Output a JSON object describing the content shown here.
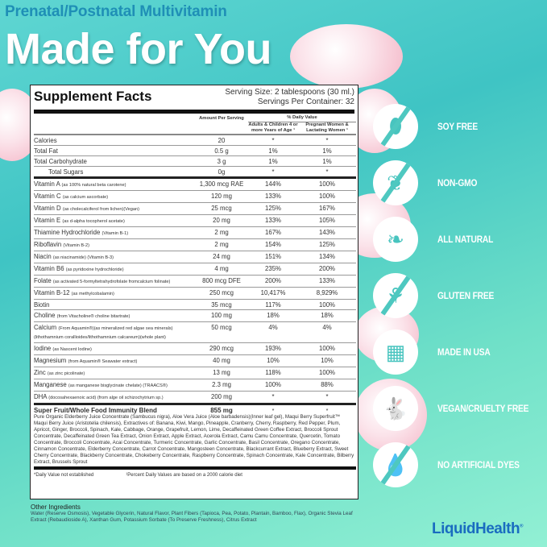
{
  "header": {
    "subtitle": "Prenatal/Postnatal Multivitamin",
    "title": "Made for You"
  },
  "panel": {
    "title": "Supplement Facts",
    "serving_size": "Serving Size: 2 tablespoons (30 ml.)",
    "servings_per_container": "Servings Per Container: 32",
    "columns": {
      "amount": "Amount Per Serving",
      "daily_value": "% Daily Value",
      "adults": "Adults & Children 4 or more Years of Age ¹",
      "pregnant": "Pregnant Women & Lactating Women ¹"
    },
    "macros": [
      {
        "name": "Calories",
        "amount": "20",
        "adults": "*",
        "pregnant": "*"
      },
      {
        "name": "Total Fat",
        "amount": "0.5 g",
        "adults": "1%",
        "pregnant": "1%"
      },
      {
        "name": "Total Carbohydrate",
        "amount": "3 g",
        "adults": "1%",
        "pregnant": "1%"
      },
      {
        "name": "Total Sugars",
        "amount": "0g",
        "adults": "*",
        "pregnant": "*"
      }
    ],
    "nutrients": [
      {
        "name": "Vitamin A",
        "note": "(as 100% natural beta carotene)",
        "amount": "1,300 mcg RAE",
        "adults": "144%",
        "pregnant": "100%"
      },
      {
        "name": "Vitamin C",
        "note": "(as calcium ascorbate)",
        "amount": "120 mg",
        "adults": "133%",
        "pregnant": "100%"
      },
      {
        "name": "Vitamin D",
        "note": "(as cholecalciferol from lichen)(Vegan)",
        "amount": "25 mcg",
        "adults": "125%",
        "pregnant": "167%"
      },
      {
        "name": "Vitamin E",
        "note": "(as d-alpha tocopherol acetate)",
        "amount": "20 mg",
        "adults": "133%",
        "pregnant": "105%"
      },
      {
        "name": "Thiamine Hydrochloride",
        "note": "(Vitamin B-1)",
        "amount": "2 mg",
        "adults": "167%",
        "pregnant": "143%"
      },
      {
        "name": "Riboflavin",
        "note": "(Vitamin B-2)",
        "amount": "2 mg",
        "adults": "154%",
        "pregnant": "125%"
      },
      {
        "name": "Niacin",
        "note": "(as niacinamide) (Vitamin B-3)",
        "amount": "24 mg",
        "adults": "151%",
        "pregnant": "134%"
      },
      {
        "name": "Vitamin B6",
        "note": "(as pyridoxine hydrochloride)",
        "amount": "4 mg",
        "adults": "235%",
        "pregnant": "200%"
      },
      {
        "name": "Folate",
        "note": "(as activated 5-formyltetrahydrofolate fromcalcium folinate)",
        "amount": "800 mcg DFE",
        "adults": "200%",
        "pregnant": "133%"
      },
      {
        "name": "Vitamin B-12",
        "note": "(as methylcobalamin)",
        "amount": "250 mcg",
        "adults": "10,417%",
        "pregnant": "8,929%"
      },
      {
        "name": "Biotin",
        "note": "",
        "amount": "35 mcg",
        "adults": "117%",
        "pregnant": "100%"
      },
      {
        "name": "Choline",
        "note": "(from Vitacholine® choline bitartrate)",
        "amount": "100 mg",
        "adults": "18%",
        "pregnant": "18%"
      },
      {
        "name": "Calcium",
        "note": "(From Aquamin®)(as mineralized red algae sea minerals)(lithothamnium corallioides/lithothamnium calcareum)(whole plant)",
        "amount": "50 mcg",
        "adults": "4%",
        "pregnant": "4%"
      },
      {
        "name": "Iodine",
        "note": "(as Nascent Iodine)",
        "amount": "290 mcg",
        "adults": "193%",
        "pregnant": "100%"
      },
      {
        "name": "Magnesium",
        "note": "(from Aquamin® Seawater extract)",
        "amount": "40 mg",
        "adults": "10%",
        "pregnant": "10%"
      },
      {
        "name": "Zinc",
        "note": "(as zinc picolinate)",
        "amount": "13 mg",
        "adults": "118%",
        "pregnant": "100%"
      },
      {
        "name": "Manganese",
        "note": "(as manganese bisglycinate chelate) (TRAACS®)",
        "amount": "2.3 mg",
        "adults": "100%",
        "pregnant": "88%"
      },
      {
        "name": "DHA",
        "note": "(docosahexaenoic acid) (from alge oil schizochytrium sp.)",
        "amount": "200 mg",
        "adults": "*",
        "pregnant": "*"
      }
    ],
    "blend": {
      "name": "Super Fruit/Whole Food Immunity Blend",
      "amount": "855 mg",
      "adults": "*",
      "pregnant": "*",
      "ingredients": "Pure Organic Elderberry Juice Concentrate (Sambucus nigra), Aloe Vera Juice (Aloe barbadensis)(Inner leaf gel), Maqui Berry Superfruit™ Maqui Berry Juice (Aristotelia chilensis), Extractives of: Banana, Kiwi, Mango, Pineapple, Cranberry, Cherry, Raspberry, Red Pepper, Plum, Apricot, Ginger, Broccoli, Spinach, Kale, Cabbage, Orange, Grapefruit, Lemon, Lime, Decaffeinated Green Coffee Extract, Broccoli Sprout Concentrate, Decaffeinated Green Tea Extract, Onion Extract, Apple Extract, Acerola Extract, Camu Camu Concentrate, Quercetin, Tomato Concentrate, Broccoli Concentrate, Acai Concentrate, Turmeric Concentrate, Garlic Concentrate, Basil Concentrate, Oregano Concentrate, Cinnamon Concentrate, Elderberry Concentrate, Carrot Concentrate, Mangosteen Concentrate, Blackcurrant Extract, Blueberry Extract, Sweet Cherry Concentrate, Blackberry Concentrate, Chokeberry Concentrate, Raspberry Concentrate, Spinach Concentrate, Kale Concentrate, Bilberry Extract, Brussels Sprout"
    },
    "footnotes": [
      "*Daily Value not established",
      "¹Percent Daily Values are based on a 2000 calorie diet"
    ]
  },
  "other_ingredients": {
    "title": "Other Ingredients",
    "text": "Water (Reserve Osmosis), Vegetable Glycerin, Natural Flavor, Plant Fibers (Tapioca, Pea, Potato, Plantain, Bamboo, Flax), Organic Stevia Leaf Extract (Rebaudioside A), Xanthan Gum, Potassium Sorbate (To Preserve Freshness), Citrus Extract"
  },
  "badges": [
    {
      "label": "SOY FREE",
      "icon": "soybean-crossed-icon",
      "glyph": "⬮",
      "slash": true
    },
    {
      "label": "NON-GMO",
      "icon": "plant-crossed-icon",
      "glyph": "❦",
      "slash": true
    },
    {
      "label": "ALL NATURAL",
      "icon": "leaf-icon",
      "glyph": "❧",
      "slash": false
    },
    {
      "label": "GLUTEN FREE",
      "icon": "wheat-crossed-icon",
      "glyph": "⚘",
      "slash": true
    },
    {
      "label": "MADE IN USA",
      "icon": "usa-flag-map-icon",
      "glyph": "▦",
      "slash": false
    },
    {
      "label": "VEGAN/CRUELTY FREE",
      "icon": "rabbit-icon",
      "glyph": "🐇",
      "slash": false
    },
    {
      "label": "NO ARTIFICIAL DYES",
      "icon": "drop-crossed-icon",
      "glyph": "💧",
      "slash": true
    }
  ],
  "logo": {
    "text": "LiquidHealth",
    "mark": "®"
  },
  "colors": {
    "background_top": "#3fc4c4",
    "background_bottom": "#92f0d4",
    "subtitle": "#1f8fb6",
    "logo": "#1a6cc0",
    "cloud": "#f4b8c8"
  }
}
